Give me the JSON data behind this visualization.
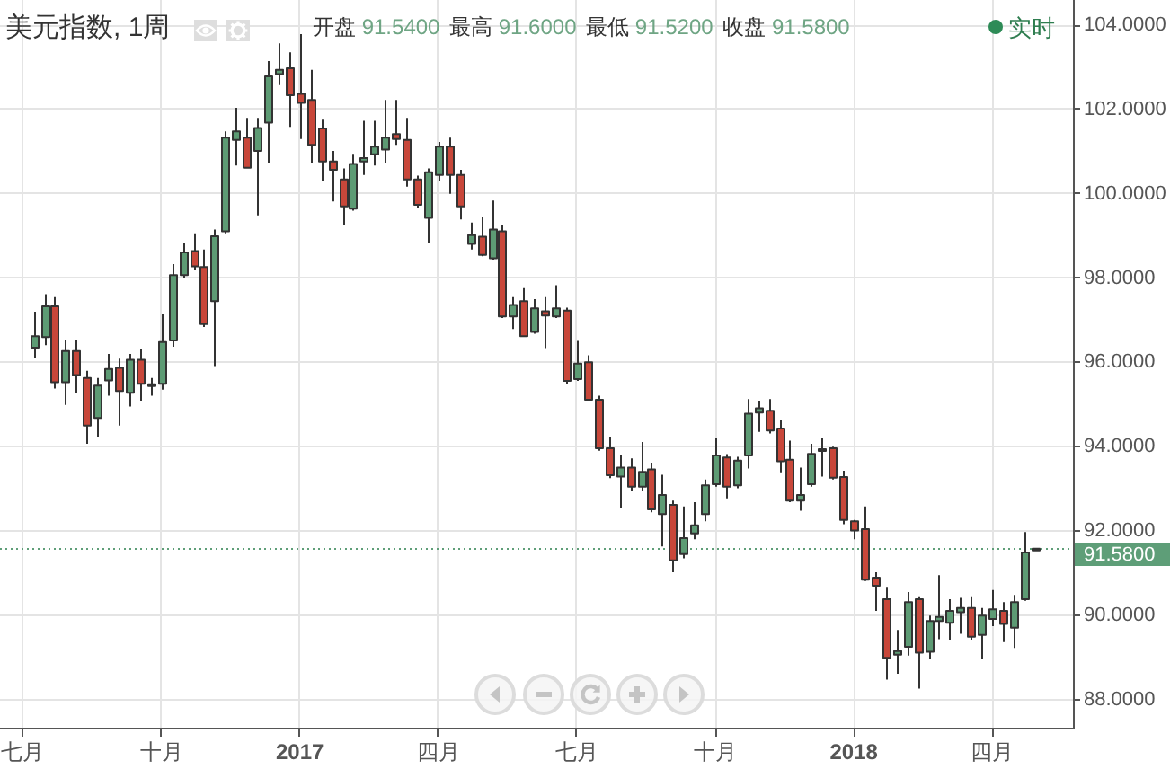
{
  "chart_data": {
    "type": "candlestick",
    "title": "美元指数, 1周",
    "subtitle": "开盘 91.5400 最高 91.6000 最低 91.5200 收盘 91.5800",
    "annotations": [
      "实时"
    ],
    "x": [
      "2016-07-11",
      "2016-07-18",
      "2016-07-25",
      "2016-08-01",
      "2016-08-08",
      "2016-08-15",
      "2016-08-22",
      "2016-08-29",
      "2016-09-05",
      "2016-09-12",
      "2016-09-19",
      "2016-09-26",
      "2016-10-03",
      "2016-10-10",
      "2016-10-17",
      "2016-10-24",
      "2016-10-31",
      "2016-11-07",
      "2016-11-14",
      "2016-11-21",
      "2016-11-28",
      "2016-12-05",
      "2016-12-12",
      "2016-12-19",
      "2016-12-26",
      "2017-01-02",
      "2017-01-09",
      "2017-01-16",
      "2017-01-23",
      "2017-01-30",
      "2017-02-06",
      "2017-02-13",
      "2017-02-20",
      "2017-02-27",
      "2017-03-06",
      "2017-03-13",
      "2017-03-20",
      "2017-03-27",
      "2017-04-03",
      "2017-04-10",
      "2017-04-17",
      "2017-04-24",
      "2017-05-01",
      "2017-05-08",
      "2017-05-15",
      "2017-05-22",
      "2017-05-29",
      "2017-06-05",
      "2017-06-12",
      "2017-06-19",
      "2017-06-26",
      "2017-07-03",
      "2017-07-10",
      "2017-07-17",
      "2017-07-24",
      "2017-07-31",
      "2017-08-07",
      "2017-08-14",
      "2017-08-21",
      "2017-08-28",
      "2017-09-04",
      "2017-09-11",
      "2017-09-18",
      "2017-09-25",
      "2017-10-02",
      "2017-10-09",
      "2017-10-16",
      "2017-10-23",
      "2017-10-30",
      "2017-11-06",
      "2017-11-13",
      "2017-11-20",
      "2017-11-27",
      "2017-12-04",
      "2017-12-11",
      "2017-12-18",
      "2017-12-25",
      "2018-01-01",
      "2018-01-08",
      "2018-01-15",
      "2018-01-22",
      "2018-01-29",
      "2018-02-05",
      "2018-02-12",
      "2018-02-19",
      "2018-02-26",
      "2018-03-05",
      "2018-03-12",
      "2018-03-19",
      "2018-03-26",
      "2018-04-02",
      "2018-04-09",
      "2018-04-16",
      "2018-04-23",
      "2018-04-30"
    ],
    "ohlc": [
      [
        96.35,
        97.2,
        96.1,
        96.62
      ],
      [
        96.6,
        97.62,
        96.41,
        97.33
      ],
      [
        97.33,
        97.55,
        95.38,
        95.53
      ],
      [
        95.53,
        96.52,
        94.99,
        96.27
      ],
      [
        96.27,
        96.52,
        95.28,
        95.7
      ],
      [
        95.63,
        95.8,
        94.07,
        94.5
      ],
      [
        94.68,
        95.63,
        94.24,
        95.45
      ],
      [
        95.57,
        96.2,
        95.21,
        95.84
      ],
      [
        95.87,
        96.09,
        94.5,
        95.32
      ],
      [
        95.28,
        96.2,
        94.95,
        96.06
      ],
      [
        96.06,
        96.31,
        95.09,
        95.49
      ],
      [
        95.48,
        95.63,
        95.21,
        95.45
      ],
      [
        95.49,
        97.16,
        95.35,
        96.48
      ],
      [
        96.52,
        98.33,
        96.37,
        98.07
      ],
      [
        98.07,
        98.82,
        97.99,
        98.61
      ],
      [
        98.64,
        99.06,
        98.18,
        98.28
      ],
      [
        98.26,
        98.68,
        96.84,
        96.91
      ],
      [
        97.45,
        99.15,
        95.91,
        98.99
      ],
      [
        99.11,
        101.48,
        99.06,
        101.33
      ],
      [
        101.28,
        102.04,
        100.67,
        101.48
      ],
      [
        101.33,
        101.8,
        100.6,
        100.62
      ],
      [
        101.02,
        101.8,
        99.49,
        101.56
      ],
      [
        101.69,
        103.15,
        100.74,
        102.79
      ],
      [
        102.84,
        103.57,
        102.58,
        102.94
      ],
      [
        102.98,
        103.36,
        101.59,
        102.34
      ],
      [
        102.37,
        103.79,
        101.3,
        102.16
      ],
      [
        102.23,
        102.94,
        100.74,
        101.16
      ],
      [
        101.55,
        101.76,
        100.31,
        100.77
      ],
      [
        100.77,
        101.02,
        99.82,
        100.57
      ],
      [
        100.34,
        100.6,
        99.25,
        99.7
      ],
      [
        99.65,
        100.95,
        99.6,
        100.71
      ],
      [
        100.77,
        101.73,
        100.45,
        100.85
      ],
      [
        100.94,
        101.73,
        100.67,
        101.12
      ],
      [
        101.05,
        102.23,
        100.74,
        101.33
      ],
      [
        101.42,
        102.23,
        101.16,
        101.3
      ],
      [
        101.28,
        101.8,
        100.17,
        100.34
      ],
      [
        100.34,
        100.43,
        99.67,
        99.74
      ],
      [
        99.43,
        100.6,
        98.82,
        100.51
      ],
      [
        100.45,
        101.23,
        100.31,
        101.12
      ],
      [
        101.12,
        101.33,
        100.0,
        100.45
      ],
      [
        100.45,
        100.57,
        99.39,
        99.7
      ],
      [
        98.81,
        99.32,
        98.68,
        99.02
      ],
      [
        98.98,
        99.46,
        98.52,
        98.55
      ],
      [
        98.47,
        99.84,
        98.44,
        99.15
      ],
      [
        99.11,
        99.25,
        97.05,
        97.09
      ],
      [
        97.09,
        97.55,
        96.79,
        97.36
      ],
      [
        97.45,
        97.76,
        96.6,
        96.62
      ],
      [
        96.72,
        97.5,
        96.68,
        97.28
      ],
      [
        97.21,
        97.55,
        96.34,
        97.11
      ],
      [
        97.09,
        97.83,
        97.05,
        97.28
      ],
      [
        97.23,
        97.3,
        95.49,
        95.56
      ],
      [
        95.6,
        96.51,
        95.56,
        95.97
      ],
      [
        96.0,
        96.17,
        95.09,
        95.11
      ],
      [
        95.11,
        95.21,
        93.9,
        93.96
      ],
      [
        93.96,
        94.24,
        93.25,
        93.32
      ],
      [
        93.29,
        93.79,
        92.54,
        93.5
      ],
      [
        93.5,
        93.72,
        92.96,
        93.05
      ],
      [
        93.05,
        94.11,
        92.96,
        93.4
      ],
      [
        93.46,
        93.62,
        92.44,
        92.51
      ],
      [
        92.4,
        93.33,
        91.63,
        92.85
      ],
      [
        92.62,
        92.72,
        91.02,
        91.3
      ],
      [
        91.45,
        92.58,
        91.35,
        91.83
      ],
      [
        91.94,
        92.68,
        91.8,
        92.13
      ],
      [
        92.4,
        93.22,
        92.23,
        93.08
      ],
      [
        93.11,
        94.21,
        93.05,
        93.79
      ],
      [
        93.74,
        93.82,
        92.77,
        93.05
      ],
      [
        93.08,
        93.76,
        93.01,
        93.67
      ],
      [
        93.79,
        95.13,
        93.48,
        94.78
      ],
      [
        94.81,
        95.09,
        94.35,
        94.91
      ],
      [
        94.85,
        95.13,
        94.31,
        94.38
      ],
      [
        94.43,
        94.64,
        93.39,
        93.65
      ],
      [
        93.69,
        94.14,
        92.68,
        92.72
      ],
      [
        92.72,
        93.5,
        92.48,
        92.85
      ],
      [
        93.11,
        94.07,
        93.05,
        93.83
      ],
      [
        93.91,
        94.21,
        93.29,
        93.94
      ],
      [
        93.96,
        94.0,
        93.22,
        93.26
      ],
      [
        93.28,
        93.43,
        92.16,
        92.26
      ],
      [
        92.23,
        92.26,
        91.8,
        92.01
      ],
      [
        92.04,
        92.58,
        90.81,
        90.84
      ],
      [
        90.89,
        91.02,
        90.1,
        90.7
      ],
      [
        90.38,
        90.67,
        88.47,
        88.99
      ],
      [
        89.06,
        89.65,
        88.61,
        89.15
      ],
      [
        89.25,
        90.55,
        89.04,
        90.31
      ],
      [
        90.38,
        90.45,
        88.26,
        89.11
      ],
      [
        89.13,
        89.99,
        88.96,
        89.86
      ],
      [
        89.86,
        90.95,
        89.43,
        89.96
      ],
      [
        89.82,
        90.38,
        89.42,
        90.1
      ],
      [
        90.07,
        90.41,
        89.56,
        90.17
      ],
      [
        90.17,
        90.45,
        89.42,
        89.49
      ],
      [
        89.53,
        90.17,
        88.96,
        89.99
      ],
      [
        89.91,
        90.6,
        89.74,
        90.14
      ],
      [
        90.1,
        90.31,
        89.36,
        89.79
      ],
      [
        89.7,
        90.48,
        89.22,
        90.31
      ],
      [
        90.38,
        91.97,
        90.34,
        91.49
      ],
      [
        91.54,
        91.6,
        91.52,
        91.58
      ]
    ],
    "colors": [
      "#5d9b74",
      "#5d9b74",
      "#c8473a",
      "#5d9b74",
      "#c8473a",
      "#c8473a",
      "#5d9b74",
      "#5d9b74",
      "#c8473a",
      "#5d9b74",
      "#c8473a",
      "#c8473a",
      "#5d9b74",
      "#5d9b74",
      "#5d9b74",
      "#c8473a",
      "#c8473a",
      "#5d9b74",
      "#5d9b74",
      "#5d9b74",
      "#c8473a",
      "#5d9b74",
      "#5d9b74",
      "#5d9b74",
      "#c8473a",
      "#c8473a",
      "#c8473a",
      "#c8473a",
      "#c8473a",
      "#c8473a",
      "#5d9b74",
      "#5d9b74",
      "#5d9b74",
      "#5d9b74",
      "#c8473a",
      "#c8473a",
      "#c8473a",
      "#5d9b74",
      "#5d9b74",
      "#c8473a",
      "#c8473a",
      "#5d9b74",
      "#c8473a",
      "#5d9b74",
      "#c8473a",
      "#5d9b74",
      "#c8473a",
      "#5d9b74",
      "#c8473a",
      "#5d9b74",
      "#c8473a",
      "#5d9b74",
      "#c8473a",
      "#c8473a",
      "#c8473a",
      "#5d9b74",
      "#c8473a",
      "#5d9b74",
      "#c8473a",
      "#5d9b74",
      "#c8473a",
      "#5d9b74",
      "#5d9b74",
      "#5d9b74",
      "#5d9b74",
      "#c8473a",
      "#5d9b74",
      "#5d9b74",
      "#5d9b74",
      "#c8473a",
      "#c8473a",
      "#c8473a",
      "#5d9b74",
      "#5d9b74",
      "#5d9b74",
      "#c8473a",
      "#c8473a",
      "#c8473a",
      "#c8473a",
      "#c8473a",
      "#c8473a",
      "#5d9b74",
      "#5d9b74",
      "#c8473a",
      "#5d9b74",
      "#5d9b74",
      "#5d9b74",
      "#5d9b74",
      "#c8473a",
      "#5d9b74",
      "#5d9b74",
      "#c8473a",
      "#5d9b74",
      "#5d9b74",
      "#5d9b74"
    ],
    "xlim": [
      "2016-06-19",
      "2018-05-25"
    ],
    "xticks": [
      {
        "value": "2016-07-04",
        "label": "七月"
      },
      {
        "value": "2016-10-03",
        "label": "十月"
      },
      {
        "value": "2017-01-02",
        "label": "2017"
      },
      {
        "value": "2017-04-03",
        "label": "四月"
      },
      {
        "value": "2017-07-03",
        "label": "七月"
      },
      {
        "value": "2017-10-02",
        "label": "十月"
      },
      {
        "value": "2018-01-01",
        "label": "2018"
      },
      {
        "value": "2018-04-02",
        "label": "四月"
      }
    ],
    "ylim": [
      87.33,
      104.6
    ],
    "yticks": [
      {
        "value": 88,
        "label": "88.0000"
      },
      {
        "value": 90,
        "label": "90.0000"
      },
      {
        "value": 92,
        "label": "92.0000"
      },
      {
        "value": 94,
        "label": "94.0000"
      },
      {
        "value": 96,
        "label": "96.0000"
      },
      {
        "value": 98,
        "label": "98.0000"
      },
      {
        "value": 100,
        "label": "100.0000"
      },
      {
        "value": 102,
        "label": "102.0000"
      },
      {
        "value": 104,
        "label": "104.0000"
      }
    ],
    "grid": true,
    "ref_lines": [
      {
        "axis": "y",
        "value": 91.58,
        "label": "91.5800",
        "color": "#5e9e78",
        "line_style": "dotted"
      }
    ]
  }
}
